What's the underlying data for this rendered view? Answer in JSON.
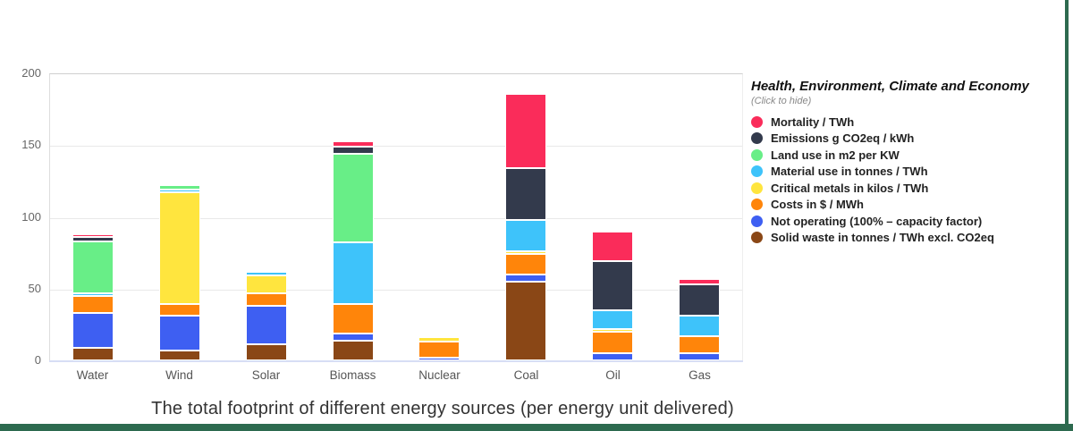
{
  "page": {
    "frame_color": "#2d6a4f"
  },
  "chart_data": {
    "type": "bar",
    "stacked": true,
    "title": "The total footprint of different energy sources (per energy unit delivered)",
    "categories": [
      "Water",
      "Wind",
      "Solar",
      "Biomass",
      "Nuclear",
      "Coal",
      "Oil",
      "Gas"
    ],
    "ylim": [
      0,
      200
    ],
    "y_ticks": [
      0,
      50,
      100,
      150,
      200
    ],
    "grid": true,
    "legend": {
      "title": "Health, Environment, Climate and Economy",
      "subtitle": "(Click to hide)",
      "position": "right"
    },
    "series": [
      {
        "name": "Mortality / TWh",
        "color": "#fa2c5a",
        "values": [
          2,
          0,
          0,
          4,
          0,
          52,
          21,
          4
        ]
      },
      {
        "name": "Emissions g CO2eq / kWh",
        "color": "#333a4c",
        "values": [
          3,
          0,
          0,
          5,
          0,
          36,
          34,
          22
        ]
      },
      {
        "name": "Land use in m2 per KW",
        "color": "#68ee87",
        "values": [
          36,
          3,
          0,
          62,
          0,
          0,
          0,
          0
        ]
      },
      {
        "name": "Material use in tonnes / TWh",
        "color": "#3ec3fa",
        "values": [
          2,
          2,
          3,
          43,
          0,
          22,
          13,
          14
        ]
      },
      {
        "name": "Critical metals in kilos / TWh",
        "color": "#ffe53e",
        "values": [
          0,
          78,
          12,
          0,
          3,
          2,
          2,
          0
        ]
      },
      {
        "name": "Costs in $ / MWh",
        "color": "#ff850a",
        "values": [
          12,
          8,
          9,
          20,
          11,
          14,
          15,
          12
        ]
      },
      {
        "name": "Not operating (100% – capacity factor)",
        "color": "#3e5ff2",
        "values": [
          24,
          24,
          27,
          5,
          2,
          5,
          5,
          5
        ]
      },
      {
        "name": "Solid waste in tonnes / TWh excl. CO2eq",
        "color": "#8a4716",
        "values": [
          9,
          7,
          11,
          14,
          0,
          55,
          0,
          0
        ]
      }
    ]
  }
}
